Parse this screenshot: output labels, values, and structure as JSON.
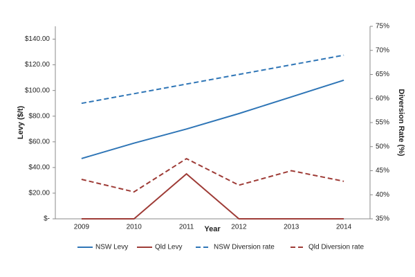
{
  "chart_data": {
    "type": "line",
    "x_label": "Year",
    "y_label": "Levy ($/t)",
    "y2_label": "Diversion Rate (%)",
    "categories": [
      "2009",
      "2010",
      "2011",
      "2012",
      "2013",
      "2014"
    ],
    "series": [
      {
        "name": "NSW Levy",
        "color": "#2e75b6",
        "style": "solid",
        "values": [
          47,
          59,
          70,
          82,
          95,
          108
        ]
      },
      {
        "name": "Qld Levy",
        "color": "#9e3b36",
        "style": "solid",
        "values": [
          0,
          0,
          35,
          0,
          0,
          0
        ]
      },
      {
        "name": "NSW Diversion rate",
        "color": "#2e75b6",
        "style": "dashed",
        "axis": "y2",
        "values": [
          59,
          61,
          63,
          65,
          67,
          69
        ]
      },
      {
        "name": "Qld Diversion rate",
        "color": "#9e3b36",
        "style": "dashed",
        "axis": "y2",
        "values": [
          43.2,
          40.6,
          47.5,
          42,
          45,
          42.8
        ]
      }
    ],
    "ylim": [
      0,
      150
    ],
    "yticks": [
      {
        "value": 0,
        "label": "$-"
      },
      {
        "value": 20,
        "label": "$20.00"
      },
      {
        "value": 40,
        "label": "$40.00"
      },
      {
        "value": 60,
        "label": "$60.00"
      },
      {
        "value": 80,
        "label": "$80.00"
      },
      {
        "value": 100,
        "label": "$100.00"
      },
      {
        "value": 120,
        "label": "$120.00"
      },
      {
        "value": 140,
        "label": "$140.00"
      }
    ],
    "y2lim": [
      35,
      75
    ],
    "y2ticks": [
      {
        "value": 35,
        "label": "35%"
      },
      {
        "value": 40,
        "label": "40%"
      },
      {
        "value": 45,
        "label": "45%"
      },
      {
        "value": 50,
        "label": "50%"
      },
      {
        "value": 55,
        "label": "55%"
      },
      {
        "value": 60,
        "label": "60%"
      },
      {
        "value": 65,
        "label": "65%"
      },
      {
        "value": 70,
        "label": "70%"
      },
      {
        "value": 75,
        "label": "75%"
      }
    ],
    "legend": "bottom",
    "grid": false
  }
}
